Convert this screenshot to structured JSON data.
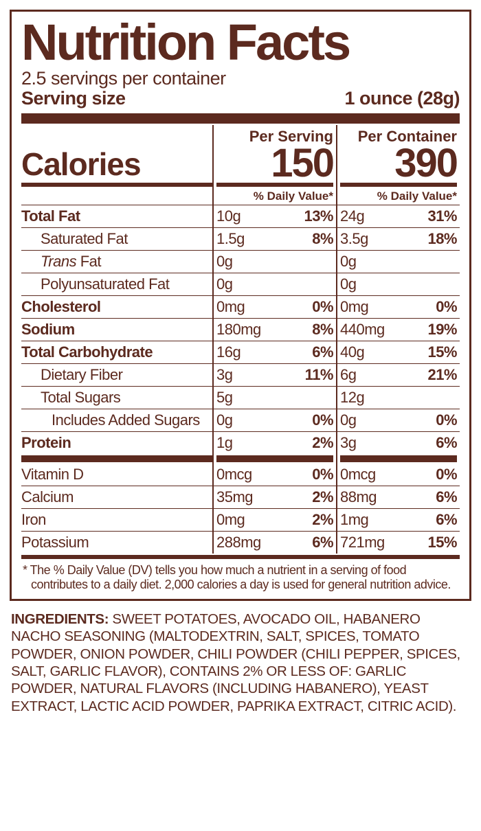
{
  "color": "#5c2a1f",
  "header": {
    "title": "Nutrition Facts",
    "servings_per_container": "2.5 servings per container",
    "serving_size_label": "Serving size",
    "serving_size_value": "1 ounce (28g)"
  },
  "columns": {
    "per_serving": "Per Serving",
    "per_container": "Per Container",
    "dv_label": "% Daily Value*"
  },
  "calories": {
    "label": "Calories",
    "per_serving": "150",
    "per_container": "390"
  },
  "nutrients": [
    {
      "name": "Total Fat",
      "bold": true,
      "indent": 0,
      "italic": false,
      "s_amt": "10g",
      "s_dv": "13%",
      "c_amt": "24g",
      "c_dv": "31%"
    },
    {
      "name": "Saturated Fat",
      "bold": false,
      "indent": 1,
      "italic": false,
      "s_amt": "1.5g",
      "s_dv": "8%",
      "c_amt": "3.5g",
      "c_dv": "18%"
    },
    {
      "name": "Trans",
      "suffix": " Fat",
      "bold": false,
      "indent": 1,
      "italic": true,
      "s_amt": "0g",
      "s_dv": "",
      "c_amt": "0g",
      "c_dv": ""
    },
    {
      "name": "Polyunsaturated Fat",
      "bold": false,
      "indent": 1,
      "italic": false,
      "s_amt": "0g",
      "s_dv": "",
      "c_amt": "0g",
      "c_dv": ""
    },
    {
      "name": "Cholesterol",
      "bold": true,
      "indent": 0,
      "italic": false,
      "s_amt": "0mg",
      "s_dv": "0%",
      "c_amt": "0mg",
      "c_dv": "0%"
    },
    {
      "name": "Sodium",
      "bold": true,
      "indent": 0,
      "italic": false,
      "s_amt": "180mg",
      "s_dv": "8%",
      "c_amt": "440mg",
      "c_dv": "19%"
    },
    {
      "name": "Total Carbohydrate",
      "bold": true,
      "indent": 0,
      "italic": false,
      "s_amt": "16g",
      "s_dv": "6%",
      "c_amt": "40g",
      "c_dv": "15%"
    },
    {
      "name": "Dietary Fiber",
      "bold": false,
      "indent": 1,
      "italic": false,
      "s_amt": "3g",
      "s_dv": "11%",
      "c_amt": "6g",
      "c_dv": "21%"
    },
    {
      "name": "Total Sugars",
      "bold": false,
      "indent": 1,
      "italic": false,
      "s_amt": "5g",
      "s_dv": "",
      "c_amt": "12g",
      "c_dv": ""
    },
    {
      "name": "Includes Added Sugars",
      "bold": false,
      "indent": 2,
      "italic": false,
      "s_amt": "0g",
      "s_dv": "0%",
      "c_amt": "0g",
      "c_dv": "0%"
    },
    {
      "name": "Protein",
      "bold": true,
      "indent": 0,
      "italic": false,
      "s_amt": "1g",
      "s_dv": "2%",
      "c_amt": "3g",
      "c_dv": "6%"
    }
  ],
  "micronutrients": [
    {
      "name": "Vitamin D",
      "s_amt": "0mcg",
      "s_dv": "0%",
      "c_amt": "0mcg",
      "c_dv": "0%"
    },
    {
      "name": "Calcium",
      "s_amt": "35mg",
      "s_dv": "2%",
      "c_amt": "88mg",
      "c_dv": "6%"
    },
    {
      "name": "Iron",
      "s_amt": "0mg",
      "s_dv": "2%",
      "c_amt": "1mg",
      "c_dv": "6%"
    },
    {
      "name": "Potassium",
      "s_amt": "288mg",
      "s_dv": "6%",
      "c_amt": "721mg",
      "c_dv": "15%"
    }
  ],
  "footnote": "* The % Daily Value (DV) tells you how much a nutrient in a serving of food contributes to a daily diet. 2,000 calories a day is used for general nutrition advice.",
  "ingredients": {
    "label": "INGREDIENTS:",
    "text": " SWEET POTATOES, AVOCADO OIL, HABANERO NACHO SEASONING (MALTODEXTRIN, SALT, SPICES, TOMATO POWDER, ONION POWDER, CHILI POWDER (CHILI PEPPER, SPICES, SALT, GARLIC FLAVOR), CONTAINS 2% OR LESS OF: GARLIC POWDER, NATURAL FLAVORS (INCLUDING HABANERO), YEAST EXTRACT, LACTIC ACID POWDER, PAPRIKA EXTRACT, CITRIC ACID)."
  }
}
